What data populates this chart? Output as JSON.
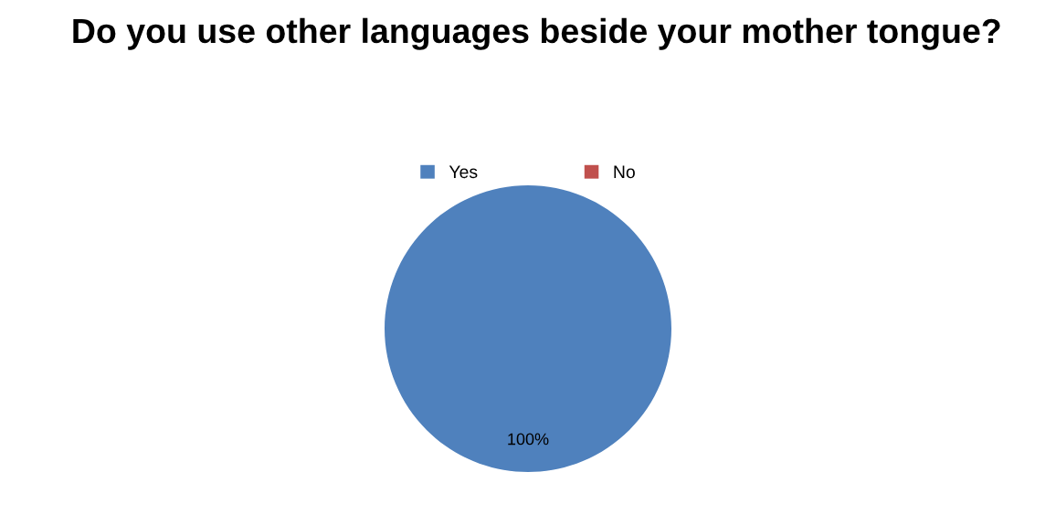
{
  "chart_data": {
    "type": "pie",
    "title": "Do you use other languages beside your mother tongue?",
    "categories": [
      "Yes",
      "No"
    ],
    "values": [
      100,
      0
    ],
    "colors": [
      "#4f81bd",
      "#c0504d"
    ],
    "value_labels": [
      "100%",
      null
    ],
    "legend": "top"
  }
}
